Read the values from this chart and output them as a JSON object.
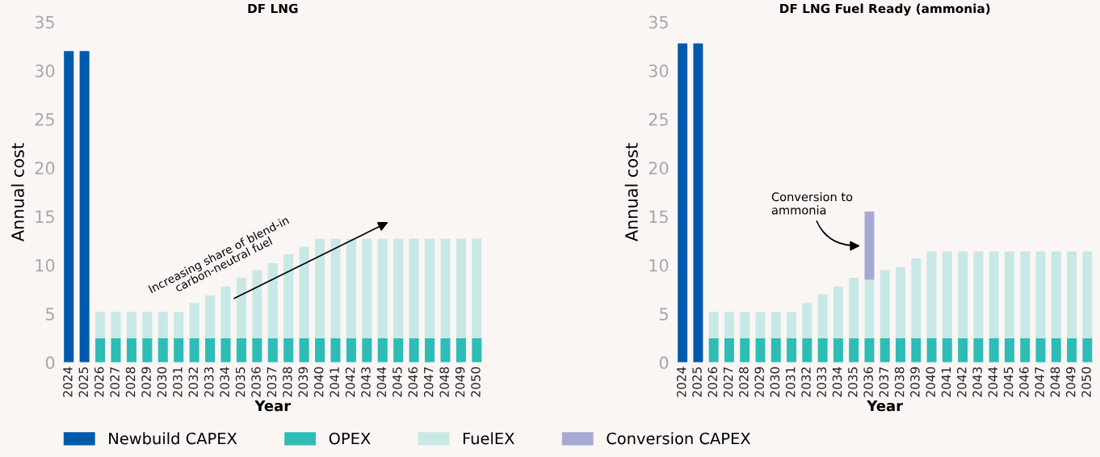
{
  "chart_data": [
    {
      "type": "bar",
      "title": "DF LNG",
      "xlabel": "Year",
      "ylabel": "Annual cost",
      "stacked": true,
      "legend": "bottom",
      "grid": false,
      "categories": [
        "2024",
        "2025",
        "2026",
        "2027",
        "2028",
        "2029",
        "2030",
        "2031",
        "2032",
        "2033",
        "2034",
        "2035",
        "2036",
        "2037",
        "2038",
        "2039",
        "2040",
        "2041",
        "2042",
        "2043",
        "2044",
        "2045",
        "2046",
        "2047",
        "2048",
        "2049",
        "2050"
      ],
      "ylim": [
        0,
        35
      ],
      "yticks": [
        0,
        5,
        10,
        15,
        20,
        25,
        30,
        35
      ],
      "series": [
        {
          "name": "Newbuild CAPEX",
          "color": "#005aab",
          "values": [
            32,
            32,
            null,
            null,
            null,
            null,
            null,
            null,
            null,
            null,
            null,
            null,
            null,
            null,
            null,
            null,
            null,
            null,
            null,
            null,
            null,
            null,
            null,
            null,
            null,
            null,
            null
          ]
        },
        {
          "name": "OPEX",
          "color": "#2ebcb6",
          "values": [
            null,
            null,
            2.5,
            2.5,
            2.5,
            2.5,
            2.5,
            2.5,
            2.5,
            2.5,
            2.5,
            2.5,
            2.5,
            2.5,
            2.5,
            2.5,
            2.5,
            2.5,
            2.5,
            2.5,
            2.5,
            2.5,
            2.5,
            2.5,
            2.5,
            2.5,
            2.5
          ]
        },
        {
          "name": "FuelEX",
          "color": "#c8e8e6",
          "values": [
            null,
            null,
            2.7,
            2.7,
            2.7,
            2.7,
            2.7,
            2.7,
            3.6,
            4.4,
            5.3,
            6.2,
            7.0,
            7.7,
            8.6,
            9.4,
            10.2,
            10.2,
            10.2,
            10.2,
            10.2,
            10.2,
            10.2,
            10.2,
            10.2,
            10.2,
            10.2
          ]
        }
      ],
      "annotations": [
        "Increasing share of blend-in\ncarbon-neutral fuel"
      ]
    },
    {
      "type": "bar",
      "title": "DF LNG Fuel Ready (ammonia)",
      "xlabel": "Year",
      "ylabel": "Annual cost",
      "stacked": true,
      "legend": "bottom",
      "grid": false,
      "categories": [
        "2024",
        "2025",
        "2026",
        "2027",
        "2028",
        "2029",
        "2030",
        "2031",
        "2032",
        "2033",
        "2034",
        "2035",
        "2036",
        "2037",
        "2038",
        "2039",
        "2040",
        "2041",
        "2042",
        "2043",
        "2044",
        "2045",
        "2046",
        "2047",
        "2048",
        "2049",
        "2050"
      ],
      "ylim": [
        0,
        35
      ],
      "yticks": [
        0,
        5,
        10,
        15,
        20,
        25,
        30,
        35
      ],
      "series": [
        {
          "name": "Newbuild CAPEX",
          "color": "#005aab",
          "values": [
            32.8,
            32.8,
            null,
            null,
            null,
            null,
            null,
            null,
            null,
            null,
            null,
            null,
            null,
            null,
            null,
            null,
            null,
            null,
            null,
            null,
            null,
            null,
            null,
            null,
            null,
            null,
            null
          ]
        },
        {
          "name": "OPEX",
          "color": "#2ebcb6",
          "values": [
            null,
            null,
            2.5,
            2.5,
            2.5,
            2.5,
            2.5,
            2.5,
            2.5,
            2.5,
            2.5,
            2.5,
            2.5,
            2.5,
            2.5,
            2.5,
            2.5,
            2.5,
            2.5,
            2.5,
            2.5,
            2.5,
            2.5,
            2.5,
            2.5,
            2.5,
            2.5
          ]
        },
        {
          "name": "FuelEX",
          "color": "#c8e8e6",
          "values": [
            null,
            null,
            2.7,
            2.7,
            2.7,
            2.7,
            2.7,
            2.7,
            3.6,
            4.5,
            5.3,
            6.2,
            6.0,
            7.0,
            7.3,
            8.2,
            8.9,
            8.9,
            8.9,
            8.9,
            8.9,
            8.9,
            8.9,
            8.9,
            8.9,
            8.9,
            8.9
          ]
        },
        {
          "name": "Conversion CAPEX",
          "color": "#a6a9d4",
          "values": [
            null,
            null,
            null,
            null,
            null,
            null,
            null,
            null,
            null,
            null,
            null,
            null,
            7.0,
            null,
            null,
            null,
            null,
            null,
            null,
            null,
            null,
            null,
            null,
            null,
            null,
            null,
            null
          ]
        }
      ],
      "annotations": [
        {
          "text": "Conversion to\nammonia",
          "x": "2036",
          "y": 12
        }
      ]
    }
  ]
}
